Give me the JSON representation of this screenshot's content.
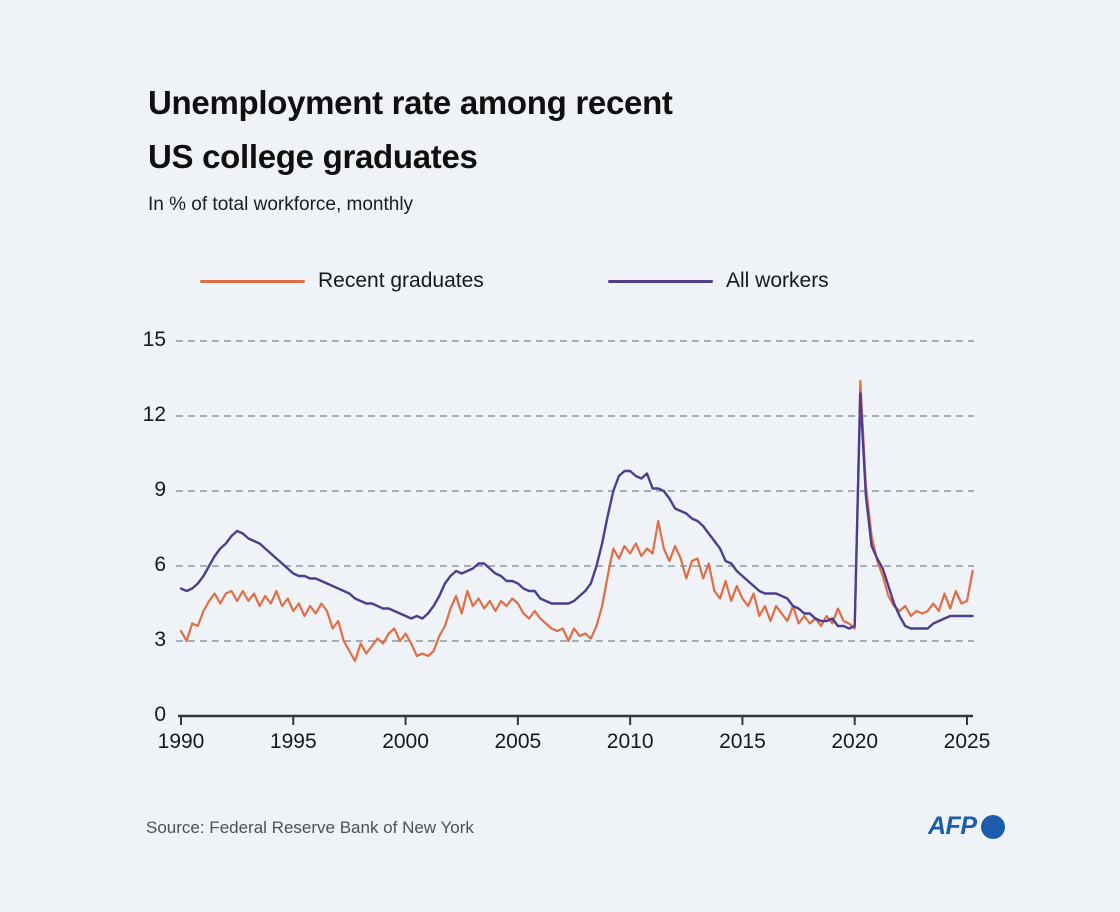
{
  "header": {
    "title_line1": "Unemployment rate among recent",
    "title_line2": "US college graduates",
    "subtitle": "In % of total workforce, monthly"
  },
  "legend": [
    {
      "label": "Recent graduates",
      "color": "#e06e45"
    },
    {
      "label": "All workers",
      "color": "#4e3d8f"
    }
  ],
  "footer": {
    "source": "Source: Federal Reserve Bank of New York",
    "logo": "AFP"
  },
  "colors": {
    "background": "#eff3f8",
    "grid": "#9097a1",
    "axis": "#33363a",
    "text": "#17181a",
    "muted": "#4c5157",
    "afp_blue": "#1d5cab"
  },
  "chart_data": {
    "type": "line",
    "title": "Unemployment rate among recent US college graduates",
    "subtitle": "In % of total workforce, monthly",
    "xlabel": "",
    "ylabel": "In % of total workforce",
    "frequency": "monthly (rendered from quarterly samples)",
    "x_start": 1990,
    "x_step": 0.25,
    "x_end": 2025.25,
    "xticks": [
      1990,
      1995,
      2000,
      2005,
      2010,
      2015,
      2020,
      2025
    ],
    "yticks": [
      0,
      3,
      6,
      9,
      12,
      15
    ],
    "ylim": [
      0,
      15
    ],
    "grid": "horizontal dashed",
    "legend_position": "top",
    "source": "Federal Reserve Bank of New York",
    "series": [
      {
        "id": "recent-graduates",
        "name": "Recent graduates",
        "color": "#e06e45",
        "values": [
          3.4,
          3.0,
          3.7,
          3.6,
          4.2,
          4.6,
          4.9,
          4.5,
          4.9,
          5.0,
          4.6,
          5.0,
          4.6,
          4.9,
          4.4,
          4.8,
          4.5,
          5.0,
          4.4,
          4.7,
          4.2,
          4.5,
          4.0,
          4.4,
          4.1,
          4.5,
          4.2,
          3.5,
          3.8,
          3.0,
          2.6,
          2.2,
          2.9,
          2.5,
          2.8,
          3.1,
          2.9,
          3.3,
          3.5,
          3.0,
          3.3,
          2.9,
          2.4,
          2.5,
          2.4,
          2.6,
          3.2,
          3.6,
          4.3,
          4.8,
          4.1,
          5.0,
          4.4,
          4.7,
          4.3,
          4.6,
          4.2,
          4.6,
          4.4,
          4.7,
          4.5,
          4.1,
          3.9,
          4.2,
          3.9,
          3.7,
          3.5,
          3.4,
          3.5,
          3.0,
          3.5,
          3.2,
          3.3,
          3.1,
          3.6,
          4.4,
          5.6,
          6.7,
          6.3,
          6.8,
          6.5,
          6.9,
          6.4,
          6.7,
          6.5,
          7.8,
          6.7,
          6.2,
          6.8,
          6.3,
          5.5,
          6.2,
          6.3,
          5.5,
          6.1,
          5.0,
          4.7,
          5.4,
          4.6,
          5.2,
          4.7,
          4.4,
          4.9,
          4.0,
          4.4,
          3.8,
          4.4,
          4.1,
          3.8,
          4.4,
          3.7,
          4.0,
          3.7,
          3.9,
          3.6,
          4.0,
          3.7,
          4.3,
          3.8,
          3.7,
          3.5,
          13.4,
          9.2,
          7.2,
          6.2,
          5.6,
          4.8,
          4.4,
          4.2,
          4.4,
          4.0,
          4.2,
          4.1,
          4.2,
          4.5,
          4.2,
          4.9,
          4.3,
          5.0,
          4.5,
          4.6,
          5.8
        ]
      },
      {
        "id": "all-workers",
        "name": "All workers",
        "color": "#4e3d8f",
        "values": [
          5.1,
          5.0,
          5.1,
          5.3,
          5.6,
          6.0,
          6.4,
          6.7,
          6.9,
          7.2,
          7.4,
          7.3,
          7.1,
          7.0,
          6.9,
          6.7,
          6.5,
          6.3,
          6.1,
          5.9,
          5.7,
          5.6,
          5.6,
          5.5,
          5.5,
          5.4,
          5.3,
          5.2,
          5.1,
          5.0,
          4.9,
          4.7,
          4.6,
          4.5,
          4.5,
          4.4,
          4.3,
          4.3,
          4.2,
          4.1,
          4.0,
          3.9,
          4.0,
          3.9,
          4.1,
          4.4,
          4.8,
          5.3,
          5.6,
          5.8,
          5.7,
          5.8,
          5.9,
          6.1,
          6.1,
          5.9,
          5.7,
          5.6,
          5.4,
          5.4,
          5.3,
          5.1,
          5.0,
          5.0,
          4.7,
          4.6,
          4.5,
          4.5,
          4.5,
          4.5,
          4.6,
          4.8,
          5.0,
          5.3,
          6.0,
          6.9,
          8.0,
          9.0,
          9.6,
          9.8,
          9.8,
          9.6,
          9.5,
          9.7,
          9.1,
          9.1,
          9.0,
          8.7,
          8.3,
          8.2,
          8.1,
          7.9,
          7.8,
          7.6,
          7.3,
          7.0,
          6.7,
          6.2,
          6.1,
          5.8,
          5.6,
          5.4,
          5.2,
          5.0,
          4.9,
          4.9,
          4.9,
          4.8,
          4.7,
          4.4,
          4.3,
          4.1,
          4.1,
          3.9,
          3.8,
          3.8,
          3.9,
          3.6,
          3.6,
          3.5,
          3.6,
          12.9,
          8.8,
          6.8,
          6.3,
          5.9,
          5.2,
          4.5,
          4.0,
          3.6,
          3.5,
          3.5,
          3.5,
          3.5,
          3.7,
          3.8,
          3.9,
          4.0,
          4.0,
          4.0,
          4.0,
          4.0
        ]
      }
    ]
  }
}
